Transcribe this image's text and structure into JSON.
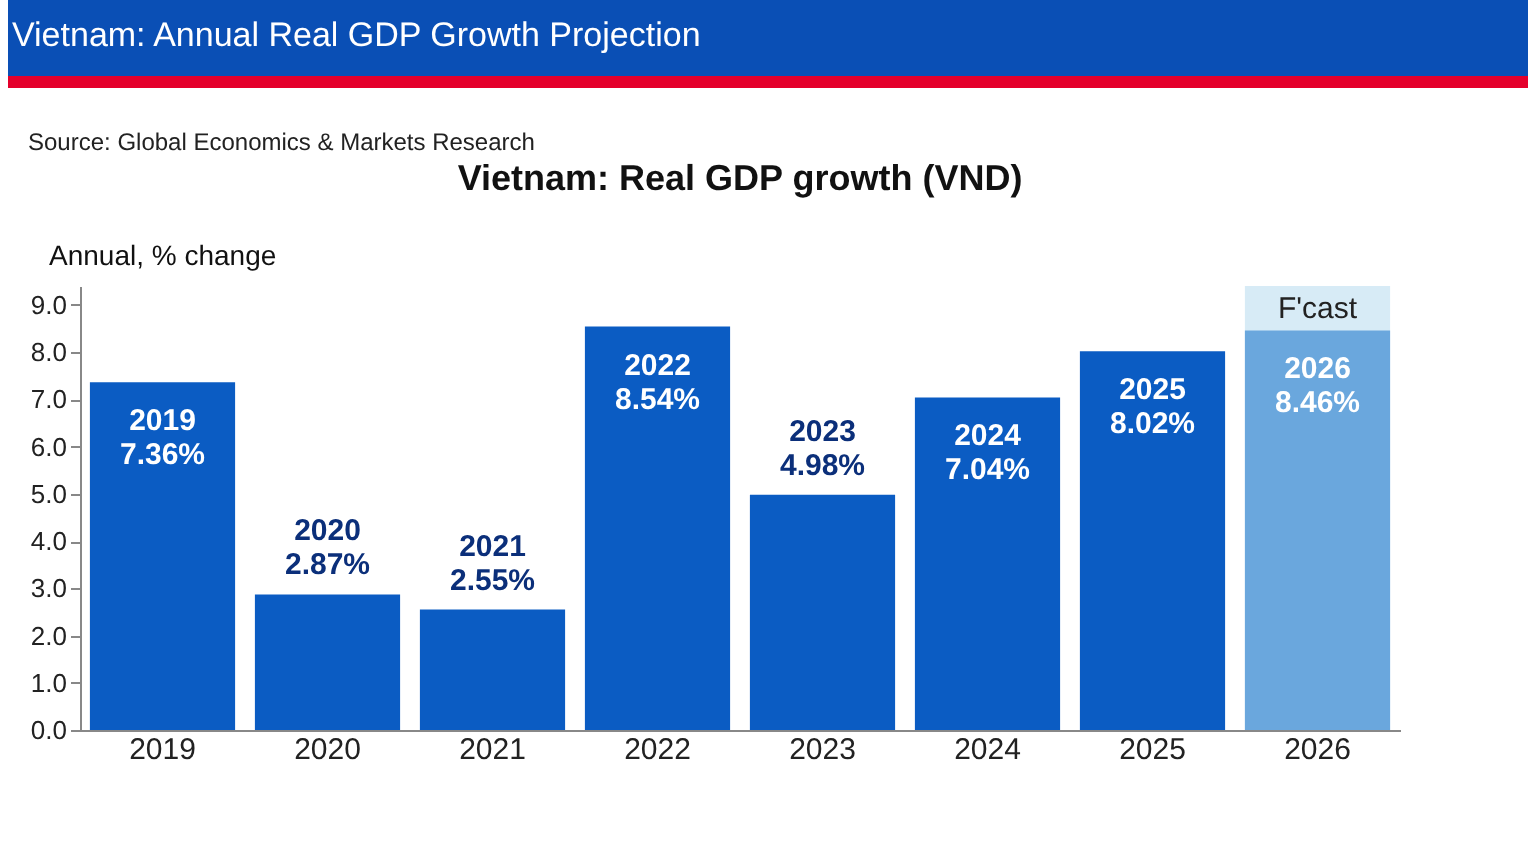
{
  "chart_data": {
    "type": "bar",
    "title": "Vietnam: Annual Real GDP Growth Projection",
    "subtitle": "Vietnam: Real GDP growth (VND)",
    "ylabel": "Annual, % change",
    "annotations": [
      "Source: Global Economics & Markets Research"
    ],
    "categories": [
      "2019",
      "2020",
      "2021",
      "2022",
      "2023",
      "2024",
      "2025",
      "2026"
    ],
    "values": [
      7.36,
      2.87,
      2.55,
      8.54,
      4.98,
      7.04,
      8.02,
      8.46
    ],
    "colors": [
      "#0b5cc3",
      "#0b5cc3",
      "#0b5cc3",
      "#0b5cc3",
      "#0b5cc3",
      "#0b5cc3",
      "#0b5cc3",
      "#6aa7dd"
    ],
    "value_labels": [
      "2019\n7.36%",
      "2020\n2.87%",
      "2021\n2.55%",
      "2022\n8.54%",
      "2023\n4.98%",
      "2024\n7.04%",
      "2025\n8.02%",
      "2026\n8.46%"
    ],
    "bands": [
      {
        "axis": "x",
        "from": "2026",
        "to": "2026",
        "label": "F'cast",
        "color": "#d3e9f5"
      }
    ],
    "ylim": [
      0,
      9.4
    ],
    "yticks": [
      {
        "value": 0,
        "label": "0.0"
      },
      {
        "value": 1,
        "label": "1.0"
      },
      {
        "value": 2,
        "label": "2.0"
      },
      {
        "value": 3,
        "label": "3.0"
      },
      {
        "value": 4,
        "label": "4.0"
      },
      {
        "value": 5,
        "label": "5.0"
      },
      {
        "value": 6,
        "label": "6.0"
      },
      {
        "value": 7,
        "label": "7.0"
      },
      {
        "value": 8,
        "label": "8.0"
      },
      {
        "value": 9,
        "label": "9.0"
      }
    ],
    "grid": false
  }
}
